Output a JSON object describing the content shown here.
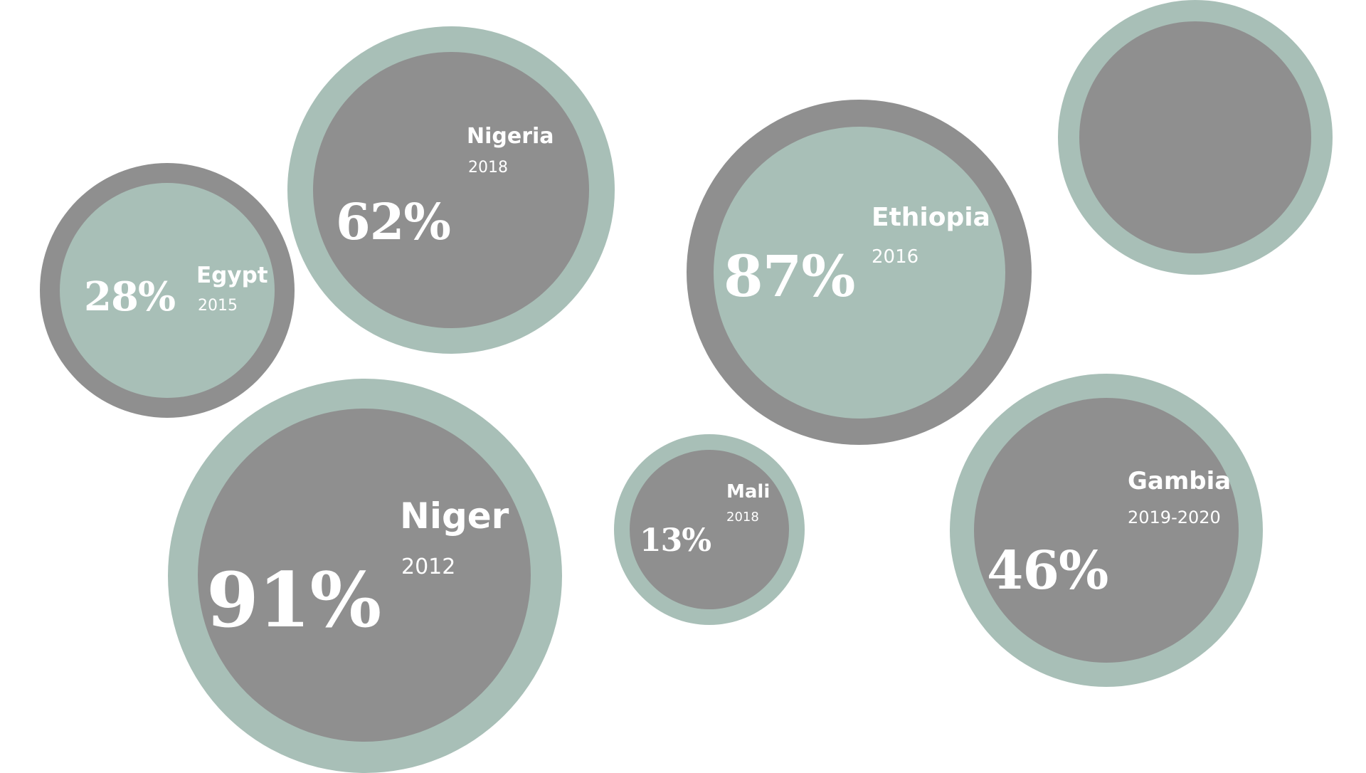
{
  "colors": {
    "sage": "#a8bfb7",
    "gray": "#8f8f8f",
    "text": "#ffffff",
    "background": "#ffffff"
  },
  "bubbles": [
    {
      "country": "Egypt",
      "year": "2015",
      "percent": "28%"
    },
    {
      "country": "Nigeria",
      "year": "2018",
      "percent": "62%"
    },
    {
      "country": "Ethiopia",
      "year": "2016",
      "percent": "87%"
    },
    {
      "country": "",
      "year": "",
      "percent": ""
    },
    {
      "country": "Niger",
      "year": "2012",
      "percent": "91%"
    },
    {
      "country": "Mali",
      "year": "2018",
      "percent": "13%"
    },
    {
      "country": "Gambia",
      "year": "2019-2020",
      "percent": "46%"
    }
  ]
}
